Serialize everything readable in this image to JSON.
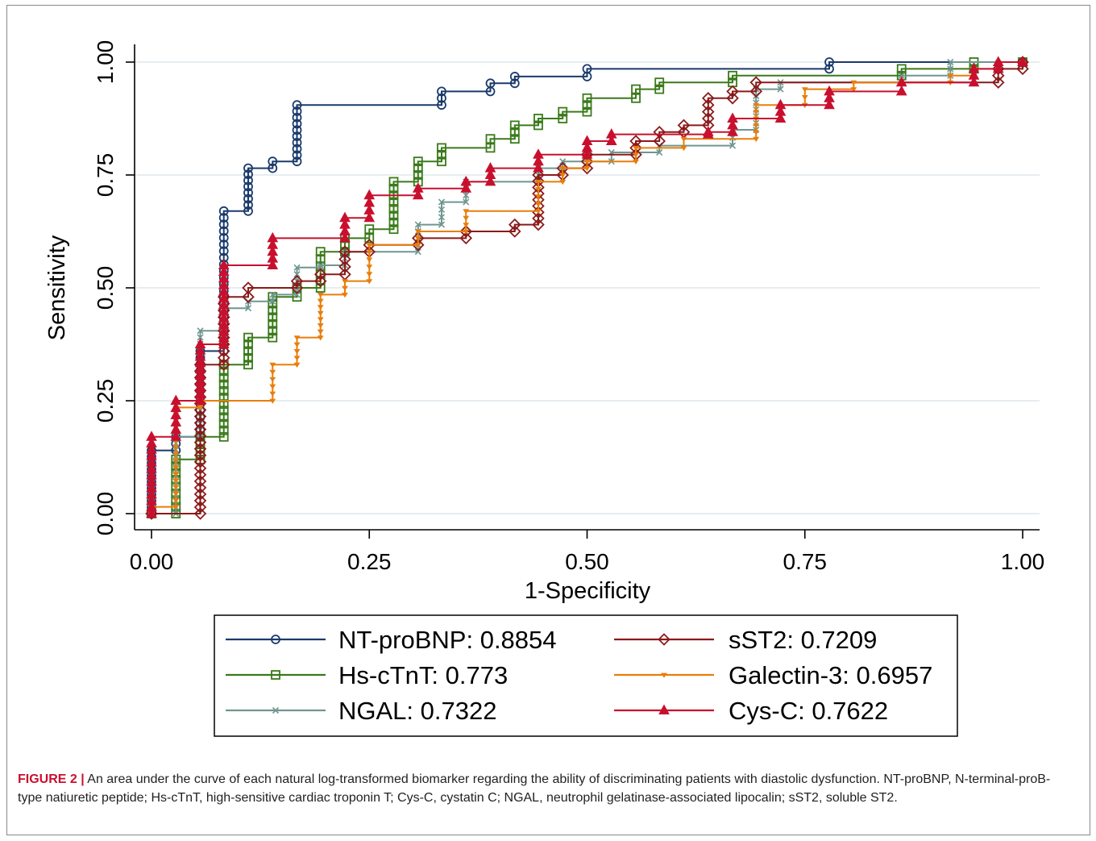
{
  "colors": {
    "NT-proBNP": "#1a3a6b",
    "sST2": "#8b1a1a",
    "Hs-cTnT": "#3a7a1a",
    "Galectin-3": "#e87e0a",
    "NGAL": "#6f9690",
    "Cys-C": "#c8102e",
    "grid": "#e6edf0"
  },
  "caption": {
    "label": "FIGURE 2 |",
    "text": " An area under the curve of each natural log-transformed biomarker regarding the ability of discriminating patients with diastolic dysfunction. NT-proBNP, N-terminal-proB-type natiuretic peptide; Hs-cTnT, high-sensitive cardiac troponin T; Cys-C, cystatin C; NGAL, neutrophil gelatinase-associated lipocalin; sST2, soluble ST2."
  },
  "chart_data": {
    "type": "line",
    "xlabel": "1-Specificity",
    "ylabel": "Sensitivity",
    "xlim": [
      0,
      1
    ],
    "ylim": [
      0,
      1
    ],
    "xticks": [
      "0.00",
      "0.25",
      "0.50",
      "0.75",
      "1.00"
    ],
    "yticks": [
      "0.00",
      "0.25",
      "0.50",
      "0.75",
      "1.00"
    ],
    "grid": true,
    "legend_position": "bottom",
    "legend": [
      "NT-proBNP: 0.8854",
      "sST2: 0.7209",
      "Hs-cTnT: 0.773",
      "Galectin-3: 0.6957",
      "NGAL: 0.7322",
      "Cys-C: 0.7622"
    ],
    "series": [
      {
        "key": "NT-proBNP",
        "marker": "circle",
        "points": [
          [
            0,
            0
          ],
          [
            0,
            0.14
          ],
          [
            0.028,
            0.14
          ],
          [
            0.028,
            0.17
          ],
          [
            0.056,
            0.17
          ],
          [
            0.056,
            0.36
          ],
          [
            0.083,
            0.36
          ],
          [
            0.083,
            0.67
          ],
          [
            0.111,
            0.67
          ],
          [
            0.111,
            0.765
          ],
          [
            0.139,
            0.765
          ],
          [
            0.139,
            0.78
          ],
          [
            0.167,
            0.78
          ],
          [
            0.167,
            0.905
          ],
          [
            0.333,
            0.905
          ],
          [
            0.333,
            0.935
          ],
          [
            0.389,
            0.935
          ],
          [
            0.389,
            0.953
          ],
          [
            0.417,
            0.953
          ],
          [
            0.417,
            0.968
          ],
          [
            0.5,
            0.968
          ],
          [
            0.5,
            0.985
          ],
          [
            0.778,
            0.985
          ],
          [
            0.778,
            1.0
          ],
          [
            1.0,
            1.0
          ]
        ]
      },
      {
        "key": "Hs-cTnT",
        "marker": "square",
        "points": [
          [
            0,
            0
          ],
          [
            0.028,
            0
          ],
          [
            0.028,
            0.12
          ],
          [
            0.056,
            0.12
          ],
          [
            0.056,
            0.17
          ],
          [
            0.083,
            0.17
          ],
          [
            0.083,
            0.33
          ],
          [
            0.111,
            0.33
          ],
          [
            0.111,
            0.39
          ],
          [
            0.139,
            0.39
          ],
          [
            0.139,
            0.48
          ],
          [
            0.167,
            0.48
          ],
          [
            0.167,
            0.5
          ],
          [
            0.194,
            0.5
          ],
          [
            0.194,
            0.58
          ],
          [
            0.222,
            0.58
          ],
          [
            0.222,
            0.61
          ],
          [
            0.25,
            0.61
          ],
          [
            0.25,
            0.63
          ],
          [
            0.278,
            0.63
          ],
          [
            0.278,
            0.735
          ],
          [
            0.306,
            0.735
          ],
          [
            0.306,
            0.78
          ],
          [
            0.333,
            0.78
          ],
          [
            0.333,
            0.81
          ],
          [
            0.389,
            0.81
          ],
          [
            0.389,
            0.83
          ],
          [
            0.417,
            0.83
          ],
          [
            0.417,
            0.86
          ],
          [
            0.444,
            0.86
          ],
          [
            0.444,
            0.875
          ],
          [
            0.472,
            0.875
          ],
          [
            0.472,
            0.89
          ],
          [
            0.5,
            0.89
          ],
          [
            0.5,
            0.92
          ],
          [
            0.556,
            0.92
          ],
          [
            0.556,
            0.94
          ],
          [
            0.583,
            0.94
          ],
          [
            0.583,
            0.955
          ],
          [
            0.667,
            0.955
          ],
          [
            0.667,
            0.97
          ],
          [
            0.861,
            0.97
          ],
          [
            0.861,
            0.985
          ],
          [
            0.944,
            0.985
          ],
          [
            0.944,
            1.0
          ],
          [
            1.0,
            1.0
          ]
        ]
      },
      {
        "key": "NGAL",
        "marker": "x",
        "points": [
          [
            0,
            0
          ],
          [
            0.028,
            0
          ],
          [
            0.028,
            0.17
          ],
          [
            0.056,
            0.17
          ],
          [
            0.056,
            0.405
          ],
          [
            0.083,
            0.405
          ],
          [
            0.083,
            0.455
          ],
          [
            0.111,
            0.455
          ],
          [
            0.111,
            0.47
          ],
          [
            0.139,
            0.47
          ],
          [
            0.139,
            0.485
          ],
          [
            0.167,
            0.485
          ],
          [
            0.167,
            0.545
          ],
          [
            0.194,
            0.545
          ],
          [
            0.194,
            0.55
          ],
          [
            0.222,
            0.55
          ],
          [
            0.222,
            0.58
          ],
          [
            0.306,
            0.58
          ],
          [
            0.306,
            0.64
          ],
          [
            0.333,
            0.64
          ],
          [
            0.333,
            0.69
          ],
          [
            0.361,
            0.69
          ],
          [
            0.361,
            0.735
          ],
          [
            0.444,
            0.735
          ],
          [
            0.444,
            0.765
          ],
          [
            0.472,
            0.765
          ],
          [
            0.472,
            0.78
          ],
          [
            0.528,
            0.78
          ],
          [
            0.528,
            0.8
          ],
          [
            0.583,
            0.8
          ],
          [
            0.583,
            0.815
          ],
          [
            0.667,
            0.815
          ],
          [
            0.667,
            0.85
          ],
          [
            0.694,
            0.85
          ],
          [
            0.694,
            0.94
          ],
          [
            0.722,
            0.94
          ],
          [
            0.722,
            0.955
          ],
          [
            0.861,
            0.955
          ],
          [
            0.861,
            0.97
          ],
          [
            0.917,
            0.97
          ],
          [
            0.917,
            1.0
          ],
          [
            1.0,
            1.0
          ]
        ]
      },
      {
        "key": "sST2",
        "marker": "diamond",
        "points": [
          [
            0,
            0
          ],
          [
            0.056,
            0
          ],
          [
            0.056,
            0.33
          ],
          [
            0.083,
            0.33
          ],
          [
            0.083,
            0.48
          ],
          [
            0.111,
            0.48
          ],
          [
            0.111,
            0.5
          ],
          [
            0.167,
            0.5
          ],
          [
            0.167,
            0.515
          ],
          [
            0.194,
            0.515
          ],
          [
            0.194,
            0.53
          ],
          [
            0.222,
            0.53
          ],
          [
            0.222,
            0.58
          ],
          [
            0.25,
            0.58
          ],
          [
            0.25,
            0.595
          ],
          [
            0.306,
            0.595
          ],
          [
            0.306,
            0.61
          ],
          [
            0.361,
            0.61
          ],
          [
            0.361,
            0.625
          ],
          [
            0.417,
            0.625
          ],
          [
            0.417,
            0.64
          ],
          [
            0.444,
            0.64
          ],
          [
            0.444,
            0.75
          ],
          [
            0.472,
            0.75
          ],
          [
            0.472,
            0.765
          ],
          [
            0.5,
            0.765
          ],
          [
            0.5,
            0.795
          ],
          [
            0.556,
            0.795
          ],
          [
            0.556,
            0.825
          ],
          [
            0.583,
            0.825
          ],
          [
            0.583,
            0.845
          ],
          [
            0.611,
            0.845
          ],
          [
            0.611,
            0.86
          ],
          [
            0.639,
            0.86
          ],
          [
            0.639,
            0.92
          ],
          [
            0.667,
            0.92
          ],
          [
            0.667,
            0.935
          ],
          [
            0.694,
            0.935
          ],
          [
            0.694,
            0.955
          ],
          [
            0.972,
            0.955
          ],
          [
            0.972,
            0.985
          ],
          [
            1.0,
            0.985
          ],
          [
            1.0,
            1.0
          ]
        ]
      },
      {
        "key": "Galectin-3",
        "marker": "tri-down",
        "points": [
          [
            0,
            0
          ],
          [
            0,
            0.015
          ],
          [
            0.028,
            0.015
          ],
          [
            0.028,
            0.235
          ],
          [
            0.056,
            0.235
          ],
          [
            0.056,
            0.25
          ],
          [
            0.139,
            0.25
          ],
          [
            0.139,
            0.33
          ],
          [
            0.167,
            0.33
          ],
          [
            0.167,
            0.39
          ],
          [
            0.194,
            0.39
          ],
          [
            0.194,
            0.485
          ],
          [
            0.222,
            0.485
          ],
          [
            0.222,
            0.515
          ],
          [
            0.25,
            0.515
          ],
          [
            0.25,
            0.595
          ],
          [
            0.306,
            0.595
          ],
          [
            0.306,
            0.625
          ],
          [
            0.361,
            0.625
          ],
          [
            0.361,
            0.67
          ],
          [
            0.444,
            0.67
          ],
          [
            0.444,
            0.735
          ],
          [
            0.472,
            0.735
          ],
          [
            0.472,
            0.765
          ],
          [
            0.5,
            0.765
          ],
          [
            0.5,
            0.78
          ],
          [
            0.556,
            0.78
          ],
          [
            0.556,
            0.81
          ],
          [
            0.611,
            0.81
          ],
          [
            0.611,
            0.83
          ],
          [
            0.694,
            0.83
          ],
          [
            0.694,
            0.905
          ],
          [
            0.75,
            0.905
          ],
          [
            0.75,
            0.94
          ],
          [
            0.806,
            0.94
          ],
          [
            0.806,
            0.955
          ],
          [
            0.917,
            0.955
          ],
          [
            0.917,
            0.97
          ],
          [
            0.944,
            0.97
          ],
          [
            0.944,
            0.985
          ],
          [
            0.972,
            0.985
          ],
          [
            0.972,
            1.0
          ],
          [
            1.0,
            1.0
          ]
        ]
      },
      {
        "key": "Cys-C",
        "marker": "triangle",
        "points": [
          [
            0,
            0
          ],
          [
            0,
            0.17
          ],
          [
            0.028,
            0.17
          ],
          [
            0.028,
            0.25
          ],
          [
            0.056,
            0.25
          ],
          [
            0.056,
            0.375
          ],
          [
            0.083,
            0.375
          ],
          [
            0.083,
            0.55
          ],
          [
            0.139,
            0.55
          ],
          [
            0.139,
            0.61
          ],
          [
            0.222,
            0.61
          ],
          [
            0.222,
            0.655
          ],
          [
            0.25,
            0.655
          ],
          [
            0.25,
            0.705
          ],
          [
            0.306,
            0.705
          ],
          [
            0.306,
            0.72
          ],
          [
            0.361,
            0.72
          ],
          [
            0.361,
            0.735
          ],
          [
            0.389,
            0.735
          ],
          [
            0.389,
            0.765
          ],
          [
            0.444,
            0.765
          ],
          [
            0.444,
            0.795
          ],
          [
            0.5,
            0.795
          ],
          [
            0.5,
            0.825
          ],
          [
            0.528,
            0.825
          ],
          [
            0.528,
            0.84
          ],
          [
            0.639,
            0.84
          ],
          [
            0.639,
            0.845
          ],
          [
            0.667,
            0.845
          ],
          [
            0.667,
            0.875
          ],
          [
            0.722,
            0.875
          ],
          [
            0.722,
            0.905
          ],
          [
            0.778,
            0.905
          ],
          [
            0.778,
            0.935
          ],
          [
            0.861,
            0.935
          ],
          [
            0.861,
            0.955
          ],
          [
            0.944,
            0.955
          ],
          [
            0.944,
            0.985
          ],
          [
            0.972,
            0.985
          ],
          [
            0.972,
            1.0
          ],
          [
            1.0,
            1.0
          ]
        ]
      }
    ]
  }
}
